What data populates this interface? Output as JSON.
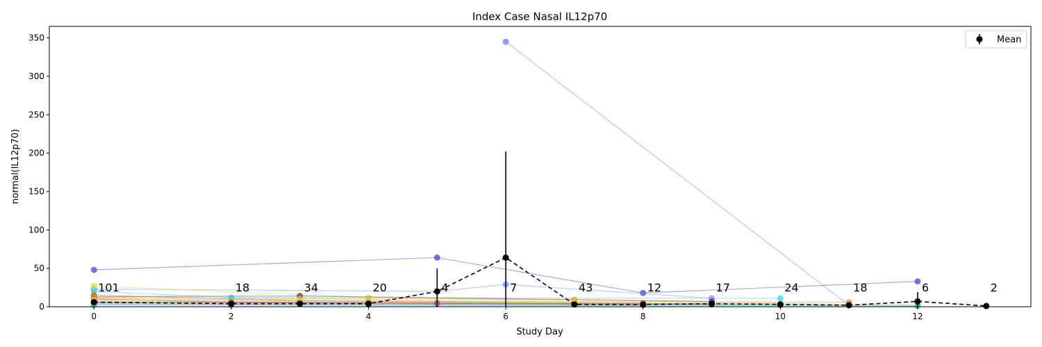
{
  "chart_data": {
    "type": "line",
    "title": "Index Case Nasal IL12p70",
    "xlabel": "Study Day",
    "ylabel": "normal(IL12p70)",
    "xlim": [
      -0.65,
      13.65
    ],
    "ylim": [
      0,
      365
    ],
    "x_ticks": [
      0,
      2,
      4,
      6,
      8,
      10,
      12
    ],
    "y_ticks": [
      0,
      50,
      100,
      150,
      200,
      250,
      300,
      350
    ],
    "grid": false,
    "legend": {
      "position": "top-right",
      "entries": [
        "Mean"
      ]
    },
    "mean_series": {
      "name": "Mean",
      "color": "#000000",
      "points": [
        {
          "x": 0,
          "y": 6,
          "err": 2
        },
        {
          "x": 2,
          "y": 4,
          "err": 1
        },
        {
          "x": 3,
          "y": 4,
          "err": 1.5
        },
        {
          "x": 4,
          "y": 4,
          "err": 1
        },
        {
          "x": 5,
          "y": 20,
          "err": 30
        },
        {
          "x": 6,
          "y": 64,
          "err": 138
        },
        {
          "x": 7,
          "y": 3,
          "err": 1
        },
        {
          "x": 8,
          "y": 3,
          "err": 1
        },
        {
          "x": 9,
          "y": 4,
          "err": 1
        },
        {
          "x": 10,
          "y": 3,
          "err": 1
        },
        {
          "x": 11,
          "y": 2,
          "err": 1
        },
        {
          "x": 12,
          "y": 7,
          "err": 12
        },
        {
          "x": 13,
          "y": 1,
          "err": 0.5
        }
      ]
    },
    "count_labels": [
      {
        "x": 0,
        "text": "101"
      },
      {
        "x": 2,
        "text": "18"
      },
      {
        "x": 3,
        "text": "34"
      },
      {
        "x": 4,
        "text": "20"
      },
      {
        "x": 5,
        "text": "4"
      },
      {
        "x": 6,
        "text": "7"
      },
      {
        "x": 7,
        "text": "43"
      },
      {
        "x": 8,
        "text": "12"
      },
      {
        "x": 9,
        "text": "17"
      },
      {
        "x": 10,
        "text": "24"
      },
      {
        "x": 11,
        "text": "18"
      },
      {
        "x": 12,
        "text": "6"
      },
      {
        "x": 13,
        "text": "2"
      }
    ],
    "subject_series": [
      {
        "color": "#3b3bd1",
        "points": [
          [
            0,
            48
          ],
          [
            5,
            64
          ],
          [
            8,
            18
          ],
          [
            12,
            33
          ]
        ]
      },
      {
        "color": "#4f7ff0",
        "points": [
          [
            6,
            345
          ],
          [
            11,
            2
          ]
        ]
      },
      {
        "color": "#5f8ff5",
        "points": [
          [
            0,
            23
          ],
          [
            5,
            20
          ],
          [
            6,
            29
          ],
          [
            9,
            11
          ]
        ]
      },
      {
        "color": "#1fd8e8",
        "points": [
          [
            0,
            20
          ],
          [
            2,
            12
          ],
          [
            10,
            11
          ]
        ]
      },
      {
        "color": "#d3e03a",
        "points": [
          [
            0,
            27
          ],
          [
            4,
            12
          ],
          [
            7,
            8
          ]
        ]
      },
      {
        "color": "#4b2a6b",
        "points": [
          [
            0,
            13
          ],
          [
            3,
            14
          ],
          [
            9,
            7
          ]
        ]
      },
      {
        "color": "#f08a2a",
        "points": [
          [
            0,
            11
          ],
          [
            4,
            7
          ],
          [
            11,
            6
          ]
        ]
      },
      {
        "color": "#e6541f",
        "points": [
          [
            0,
            15
          ],
          [
            3,
            8
          ],
          [
            8,
            5
          ]
        ]
      },
      {
        "color": "#c02010",
        "points": [
          [
            0,
            10
          ],
          [
            2,
            6
          ],
          [
            7,
            4
          ]
        ]
      },
      {
        "color": "#9bd85f",
        "points": [
          [
            0,
            9
          ],
          [
            4,
            6
          ],
          [
            10,
            4
          ]
        ]
      },
      {
        "color": "#2aa87a",
        "points": [
          [
            0,
            7
          ],
          [
            5,
            5
          ],
          [
            12,
            2
          ]
        ]
      },
      {
        "color": "#e0a020",
        "points": [
          [
            0,
            12
          ],
          [
            7,
            9
          ],
          [
            11,
            3
          ]
        ]
      },
      {
        "color": "#8a3ab0",
        "points": [
          [
            0,
            5
          ],
          [
            3,
            5
          ],
          [
            9,
            3
          ]
        ]
      },
      {
        "color": "#ff6a3a",
        "points": [
          [
            0,
            4
          ],
          [
            2,
            3
          ],
          [
            8,
            2
          ]
        ]
      },
      {
        "color": "#3aa0e0",
        "points": [
          [
            0,
            3
          ],
          [
            4,
            3
          ],
          [
            10,
            2
          ]
        ]
      },
      {
        "color": "#f4d03a",
        "points": [
          [
            0,
            8
          ],
          [
            3,
            10
          ],
          [
            7,
            6
          ]
        ]
      },
      {
        "color": "#d04080",
        "points": [
          [
            0,
            6
          ],
          [
            5,
            4
          ],
          [
            9,
            4
          ]
        ]
      },
      {
        "color": "#40c0a0",
        "points": [
          [
            0,
            2
          ],
          [
            2,
            2
          ],
          [
            12,
            1
          ]
        ]
      }
    ]
  }
}
